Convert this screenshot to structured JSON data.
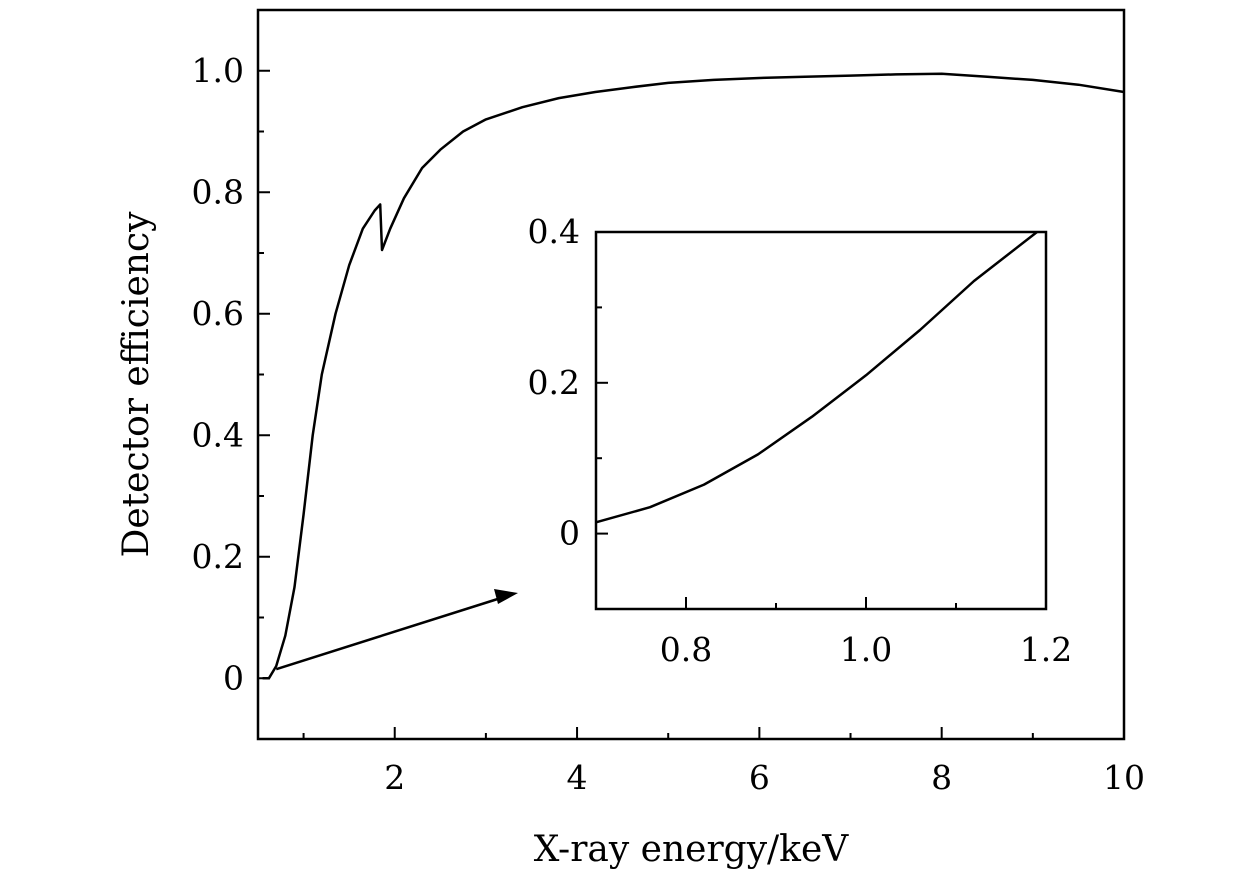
{
  "chart_data": [
    {
      "type": "line",
      "title": "",
      "xlabel": "X-ray energy/keV",
      "ylabel": "Detector efficiency",
      "xlim": [
        0.5,
        10
      ],
      "ylim": [
        -0.1,
        1.1
      ],
      "xticks": [
        2,
        4,
        6,
        8,
        10
      ],
      "xtick_labels": [
        "2",
        "4",
        "6",
        "8",
        "10"
      ],
      "yticks": [
        0,
        0.2,
        0.4,
        0.6,
        0.8,
        1.0
      ],
      "ytick_labels": [
        "0",
        "0.2",
        "0.4",
        "0.6",
        "0.8",
        "1.0"
      ],
      "grid": false,
      "series": [
        {
          "x": [
            0.55,
            0.62,
            0.7,
            0.8,
            0.9,
            1.0,
            1.1,
            1.2,
            1.35,
            1.5,
            1.65,
            1.78,
            1.84,
            1.86,
            1.95,
            2.1,
            2.3,
            2.5,
            2.75,
            3.0,
            3.4,
            3.8,
            4.2,
            4.6,
            5.0,
            5.5,
            6.0,
            6.5,
            7.0,
            7.5,
            8.0,
            8.5,
            9.0,
            9.5,
            10.0
          ],
          "y": [
            0.0,
            0.0,
            0.02,
            0.07,
            0.15,
            0.27,
            0.4,
            0.5,
            0.6,
            0.68,
            0.74,
            0.77,
            0.78,
            0.705,
            0.74,
            0.79,
            0.84,
            0.87,
            0.9,
            0.92,
            0.94,
            0.955,
            0.965,
            0.973,
            0.98,
            0.985,
            0.988,
            0.99,
            0.992,
            0.994,
            0.995,
            0.99,
            0.985,
            0.977,
            0.965
          ]
        }
      ]
    },
    {
      "type": "line",
      "title": "",
      "xlabel": "",
      "ylabel": "",
      "xlim": [
        0.7,
        1.2
      ],
      "ylim": [
        -0.1,
        0.4
      ],
      "xticks": [
        0.8,
        1.0,
        1.2
      ],
      "xtick_labels": [
        "0.8",
        "1.0",
        "1.2"
      ],
      "yticks": [
        0,
        0.2,
        0.4
      ],
      "ytick_labels": [
        "0",
        "0.2",
        "0.4"
      ],
      "grid": false,
      "series": [
        {
          "x": [
            0.7,
            0.76,
            0.82,
            0.88,
            0.94,
            1.0,
            1.06,
            1.12,
            1.19
          ],
          "y": [
            0.015,
            0.035,
            0.065,
            0.105,
            0.155,
            0.21,
            0.27,
            0.335,
            0.4
          ]
        }
      ]
    }
  ]
}
